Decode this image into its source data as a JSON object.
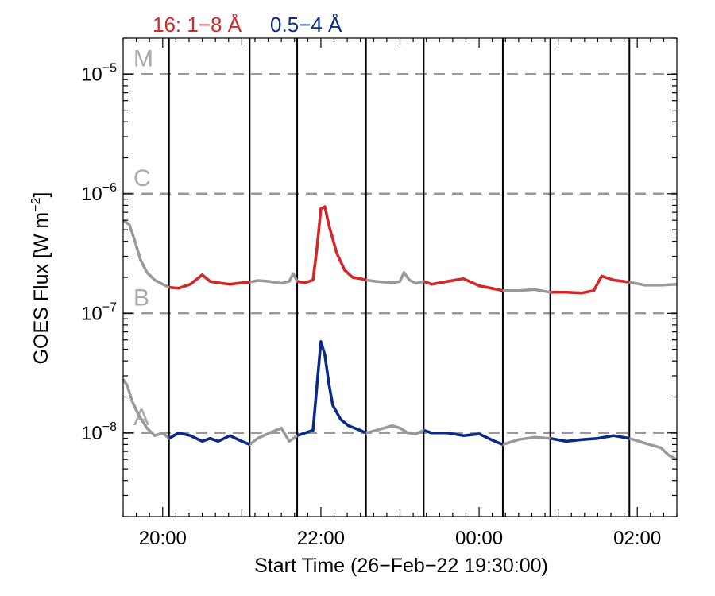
{
  "chart_data": {
    "type": "line",
    "ylabel_main": "GOES Flux [W m",
    "ylabel_sup": "−2",
    "ylabel_end": "]",
    "xlabel": "Start Time (26−Feb−22 19:30:00)",
    "y_scale": "log",
    "ylim": [
      2e-09,
      2e-05
    ],
    "y_tick_base": "10",
    "y_ticks": [
      {
        "value": 1e-08,
        "exp": "−8"
      },
      {
        "value": 1e-07,
        "exp": "−7"
      },
      {
        "value": 1e-06,
        "exp": "−6"
      },
      {
        "value": 1e-05,
        "exp": "−5"
      }
    ],
    "x_unit": "hours since 26-Feb-22 19:30:00",
    "xlim": [
      0,
      7.0
    ],
    "x_ticks": [
      {
        "x": 0.5,
        "label": "20:00"
      },
      {
        "x": 2.5,
        "label": "22:00"
      },
      {
        "x": 4.5,
        "label": "00:00"
      },
      {
        "x": 6.5,
        "label": "02:00"
      }
    ],
    "legend": [
      {
        "label": "16: 1−8 Å",
        "color": "#d62728"
      },
      {
        "label": "0.5−4 Å",
        "color": "#0a2a8a"
      }
    ],
    "flare_classes": [
      {
        "label": "M",
        "value": 1e-05
      },
      {
        "label": "C",
        "value": 1e-06
      },
      {
        "label": "B",
        "value": 1e-07
      },
      {
        "label": "A",
        "value": 1e-08
      }
    ],
    "vertical_lines": [
      0.58,
      1.6,
      2.2,
      3.07,
      3.8,
      4.8,
      5.4,
      6.4
    ],
    "highlight_intervals": [
      [
        0.58,
        1.6
      ],
      [
        2.2,
        3.07
      ],
      [
        3.8,
        4.8
      ],
      [
        5.4,
        6.4
      ]
    ],
    "colors": {
      "long_highlight": "#d62728",
      "short_highlight": "#0a2a8a",
      "base": "#999999",
      "class_grid": "#999999"
    },
    "series": [
      {
        "name": "16: 1−8 Å",
        "x": [
          0.0,
          0.08,
          0.15,
          0.22,
          0.3,
          0.4,
          0.5,
          0.58,
          0.7,
          0.85,
          1.0,
          1.1,
          1.2,
          1.35,
          1.5,
          1.6,
          1.7,
          1.85,
          2.0,
          2.1,
          2.15,
          2.2,
          2.3,
          2.4,
          2.45,
          2.5,
          2.55,
          2.6,
          2.7,
          2.8,
          2.9,
          3.0,
          3.07,
          3.2,
          3.4,
          3.5,
          3.55,
          3.62,
          3.7,
          3.8,
          3.9,
          4.1,
          4.3,
          4.5,
          4.7,
          4.8,
          5.0,
          5.2,
          5.4,
          5.6,
          5.8,
          5.95,
          6.05,
          6.2,
          6.4,
          6.6,
          6.8,
          7.0
        ],
        "y": [
          6e-07,
          5.5e-07,
          4e-07,
          2.8e-07,
          2.2e-07,
          1.9e-07,
          1.75e-07,
          1.65e-07,
          1.62e-07,
          1.75e-07,
          2.1e-07,
          1.85e-07,
          1.8e-07,
          1.75e-07,
          1.8e-07,
          1.82e-07,
          1.88e-07,
          1.85e-07,
          1.78e-07,
          1.85e-07,
          2.15e-07,
          1.85e-07,
          1.8e-07,
          1.9e-07,
          3.5e-07,
          7.5e-07,
          7.8e-07,
          5.5e-07,
          3.2e-07,
          2.3e-07,
          2e-07,
          1.95e-07,
          1.9e-07,
          1.85e-07,
          1.8e-07,
          1.85e-07,
          2.2e-07,
          1.9e-07,
          1.78e-07,
          1.85e-07,
          1.75e-07,
          1.85e-07,
          1.95e-07,
          1.7e-07,
          1.6e-07,
          1.55e-07,
          1.55e-07,
          1.58e-07,
          1.5e-07,
          1.5e-07,
          1.48e-07,
          1.55e-07,
          2.05e-07,
          1.9e-07,
          1.82e-07,
          1.72e-07,
          1.72e-07,
          1.75e-07
        ]
      },
      {
        "name": "0.5−4 Å",
        "x": [
          0.0,
          0.05,
          0.12,
          0.2,
          0.3,
          0.4,
          0.5,
          0.58,
          0.7,
          0.85,
          1.0,
          1.1,
          1.2,
          1.35,
          1.5,
          1.6,
          1.7,
          1.85,
          2.0,
          2.1,
          2.2,
          2.3,
          2.4,
          2.45,
          2.5,
          2.55,
          2.6,
          2.65,
          2.75,
          2.85,
          3.0,
          3.07,
          3.2,
          3.4,
          3.5,
          3.6,
          3.7,
          3.8,
          3.9,
          4.1,
          4.3,
          4.5,
          4.7,
          4.8,
          5.0,
          5.2,
          5.4,
          5.6,
          5.8,
          6.0,
          6.2,
          6.4,
          6.6,
          6.8,
          6.9,
          7.0
        ],
        "y": [
          2.8e-08,
          2.5e-08,
          1.8e-08,
          1.4e-08,
          1.1e-08,
          9.5e-09,
          1e-08,
          9e-09,
          1e-08,
          9.5e-09,
          8.5e-09,
          9e-09,
          8.5e-09,
          9.5e-09,
          8.5e-09,
          8e-09,
          9e-09,
          1e-08,
          1.1e-08,
          8.5e-09,
          9.5e-09,
          1e-08,
          1.05e-08,
          2.5e-08,
          5.8e-08,
          4.5e-08,
          2.6e-08,
          1.7e-08,
          1.3e-08,
          1.15e-08,
          1.05e-08,
          1e-08,
          1.05e-08,
          1.15e-08,
          1.1e-08,
          1e-08,
          9.8e-09,
          1.05e-08,
          1e-08,
          1e-08,
          9.5e-09,
          9.8e-09,
          8.5e-09,
          8e-09,
          8.8e-09,
          9.2e-09,
          9e-09,
          8.5e-09,
          8.8e-09,
          9e-09,
          9.5e-09,
          9e-09,
          8.2e-09,
          7.5e-09,
          6.5e-09,
          6e-09
        ]
      }
    ]
  }
}
